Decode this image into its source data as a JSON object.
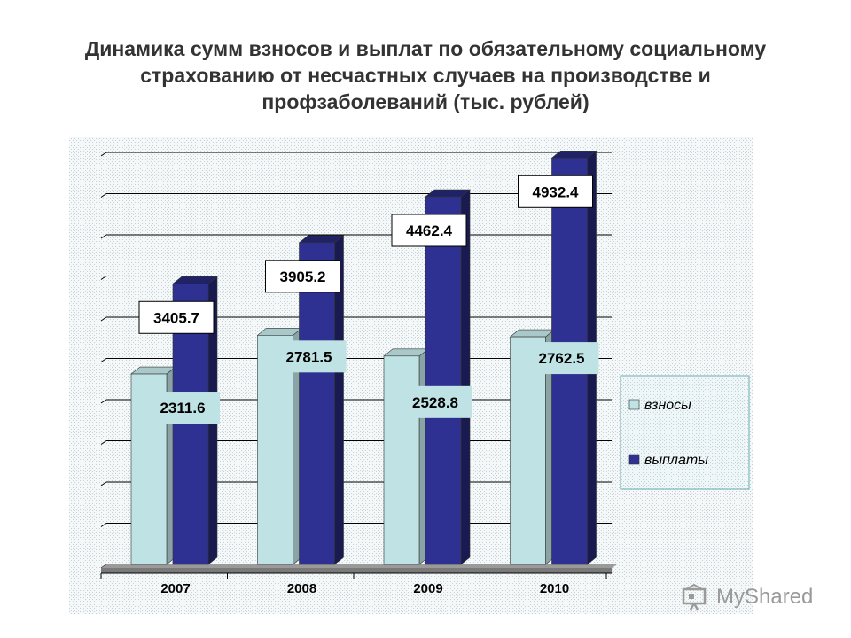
{
  "title": "Динамика сумм взносов и выплат по обязательному социальному страхованию от несчастных случаев на производстве и профзаболеваний (тыс. рублей)",
  "watermark": "MyShared",
  "chart_data": {
    "type": "bar",
    "title": "Динамика сумм взносов и выплат по обязательному социальному страхованию от несчастных случаев на производстве и профзаболеваний (тыс. рублей)",
    "categories": [
      "2007",
      "2008",
      "2009",
      "2010"
    ],
    "series": [
      {
        "name": "взносы",
        "values": [
          2311.6,
          2781.5,
          2528.8,
          2762.5
        ],
        "labels": [
          "2311.6",
          "2781.5",
          "2528.8",
          "2762.5"
        ],
        "color": "#bfe3e4"
      },
      {
        "name": "выплаты",
        "values": [
          3405.7,
          3905.2,
          4462.4,
          4932.4
        ],
        "labels": [
          "3405.7",
          "3905.2",
          "4462.4",
          "4932.4"
        ],
        "color": "#2e3192"
      }
    ],
    "ylim": [
      0,
      5000
    ],
    "gridlines": true,
    "legend_position": "right",
    "xlabel": "",
    "ylabel": ""
  }
}
